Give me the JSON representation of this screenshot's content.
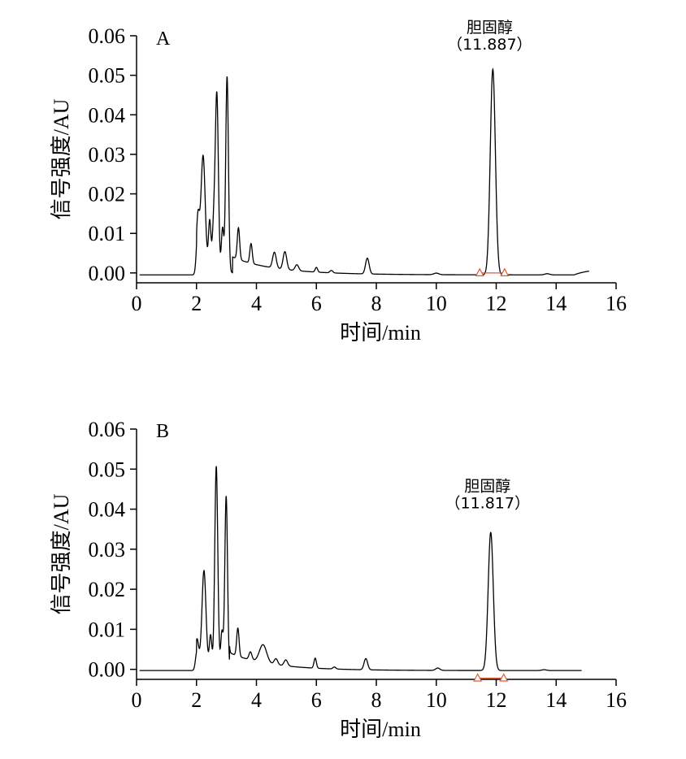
{
  "chart_data": [
    {
      "type": "line",
      "panel_label": "A",
      "xlabel": "时间/min",
      "ylabel": "信号强度/AU",
      "xlim": [
        0,
        16
      ],
      "ylim": [
        0,
        0.06
      ],
      "x_ticks": [
        0,
        2,
        4,
        6,
        8,
        10,
        12,
        14,
        16
      ],
      "y_ticks": [
        "0.00",
        "0.01",
        "0.02",
        "0.03",
        "0.04",
        "0.05",
        "0.06"
      ],
      "baseline": -0.0005,
      "x_end": 15.1,
      "peaks": [
        {
          "rt": 2.05,
          "height": 0.012,
          "width": 0.05
        },
        {
          "rt": 2.22,
          "height": 0.028,
          "width": 0.07
        },
        {
          "rt": 2.44,
          "height": 0.012,
          "width": 0.04
        },
        {
          "rt": 2.58,
          "height": 0.012,
          "width": 0.05
        },
        {
          "rt": 2.68,
          "height": 0.0435,
          "width": 0.05
        },
        {
          "rt": 2.87,
          "height": 0.011,
          "width": 0.04
        },
        {
          "rt": 3.02,
          "height": 0.0495,
          "width": 0.045
        },
        {
          "rt": 3.4,
          "height": 0.008,
          "width": 0.04
        },
        {
          "rt": 3.82,
          "height": 0.005,
          "width": 0.04
        },
        {
          "rt": 4.6,
          "height": 0.004,
          "width": 0.06
        },
        {
          "rt": 4.95,
          "height": 0.0045,
          "width": 0.06
        },
        {
          "rt": 5.35,
          "height": 0.0015,
          "width": 0.06
        },
        {
          "rt": 6.0,
          "height": 0.0012,
          "width": 0.04
        },
        {
          "rt": 6.5,
          "height": 0.0006,
          "width": 0.05
        },
        {
          "rt": 7.7,
          "height": 0.004,
          "width": 0.06
        },
        {
          "rt": 10.0,
          "height": 0.0004,
          "width": 0.08
        },
        {
          "rt": 11.887,
          "height": 0.052,
          "width": 0.085
        },
        {
          "rt": 13.7,
          "height": 0.0003,
          "width": 0.08
        }
      ],
      "decay": [
        {
          "start": 3.2,
          "amp": 0.004,
          "tau": 1.6
        },
        {
          "start": 2.0,
          "amp": 0.003,
          "tau": 0.7
        }
      ],
      "tail_rise": {
        "start": 14.6,
        "amp": 0.0015,
        "tau": 0.5
      },
      "integration_markers": [
        {
          "x": 11.45,
          "y": 0.0
        },
        {
          "x": 12.28,
          "y": 0.0
        }
      ],
      "integration_color": "#e05a3a",
      "line_color": "#000000",
      "annotation": {
        "name": "胆固醇",
        "rt_label": "（11.887）",
        "x": 11.887,
        "y_name": 0.0608,
        "y_rt": 0.0565
      }
    },
    {
      "type": "line",
      "panel_label": "B",
      "xlabel": "时间/min",
      "ylabel": "信号强度/AU",
      "xlim": [
        0,
        16
      ],
      "ylim": [
        0,
        0.06
      ],
      "x_ticks": [
        0,
        2,
        4,
        6,
        8,
        10,
        12,
        14,
        16
      ],
      "y_ticks": [
        "0.00",
        "0.01",
        "0.02",
        "0.03",
        "0.04",
        "0.05",
        "0.06"
      ],
      "baseline": -0.0003,
      "x_end": 14.85,
      "peaks": [
        {
          "rt": 2.02,
          "height": 0.005,
          "width": 0.05
        },
        {
          "rt": 2.25,
          "height": 0.023,
          "width": 0.065
        },
        {
          "rt": 2.47,
          "height": 0.0075,
          "width": 0.04
        },
        {
          "rt": 2.66,
          "height": 0.05,
          "width": 0.05
        },
        {
          "rt": 2.85,
          "height": 0.009,
          "width": 0.04
        },
        {
          "rt": 2.99,
          "height": 0.043,
          "width": 0.045
        },
        {
          "rt": 3.38,
          "height": 0.007,
          "width": 0.04
        },
        {
          "rt": 3.8,
          "height": 0.002,
          "width": 0.05
        },
        {
          "rt": 4.22,
          "height": 0.0045,
          "width": 0.12
        },
        {
          "rt": 4.65,
          "height": 0.0015,
          "width": 0.06
        },
        {
          "rt": 4.98,
          "height": 0.0015,
          "width": 0.06
        },
        {
          "rt": 5.96,
          "height": 0.0025,
          "width": 0.04
        },
        {
          "rt": 6.6,
          "height": 0.0005,
          "width": 0.05
        },
        {
          "rt": 7.65,
          "height": 0.0028,
          "width": 0.06
        },
        {
          "rt": 10.05,
          "height": 0.0006,
          "width": 0.07
        },
        {
          "rt": 11.817,
          "height": 0.0345,
          "width": 0.085
        },
        {
          "rt": 13.6,
          "height": 0.0002,
          "width": 0.08
        }
      ],
      "decay": [
        {
          "start": 3.1,
          "amp": 0.004,
          "tau": 1.5
        },
        {
          "start": 2.0,
          "amp": 0.003,
          "tau": 0.6
        }
      ],
      "tail_rise": null,
      "integration_markers": [
        {
          "x": 11.38,
          "y": -0.0022
        },
        {
          "x": 12.25,
          "y": -0.0022
        }
      ],
      "integration_color": "#e05a3a",
      "line_color": "#000000",
      "annotation": {
        "name": "胆固醇",
        "rt_label": "（11.817）",
        "x": 11.817,
        "y_name": 0.0445,
        "y_rt": 0.0402
      }
    }
  ]
}
